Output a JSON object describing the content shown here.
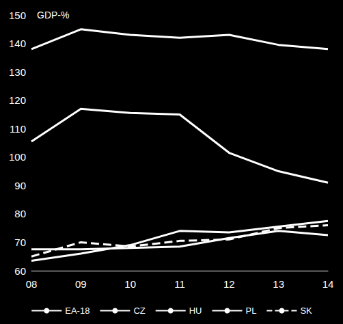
{
  "chart_data": {
    "type": "line",
    "ylabel": "GDP-%",
    "categories": [
      "08",
      "09",
      "10",
      "11",
      "12",
      "13",
      "14"
    ],
    "series": [
      {
        "name": "EA-18",
        "color": "#ffffff",
        "line_style": "solid",
        "values": [
          138,
          145,
          143,
          142,
          143,
          139.5,
          138
        ]
      },
      {
        "name": "CZ",
        "color": "#ffffff",
        "line_style": "solid",
        "values": [
          63.5,
          66,
          69,
          74,
          73.5,
          75.5,
          77.5
        ]
      },
      {
        "name": "HU",
        "color": "#ffffff",
        "line_style": "solid",
        "values": [
          105.5,
          117,
          115.5,
          115,
          101.5,
          95,
          91
        ]
      },
      {
        "name": "PL",
        "color": "#ffffff",
        "line_style": "solid",
        "values": [
          67.5,
          67.5,
          68,
          68.5,
          71.5,
          74,
          72.5
        ]
      },
      {
        "name": "SK",
        "color": "#ffffff",
        "line_style": "dashed",
        "values": [
          65,
          70,
          68.5,
          70.5,
          71,
          75,
          76
        ]
      }
    ],
    "ylim": [
      60,
      150
    ],
    "yticks": [
      60,
      70,
      80,
      90,
      100,
      110,
      120,
      130,
      140,
      150
    ],
    "grid": false,
    "legend": "bottom"
  }
}
